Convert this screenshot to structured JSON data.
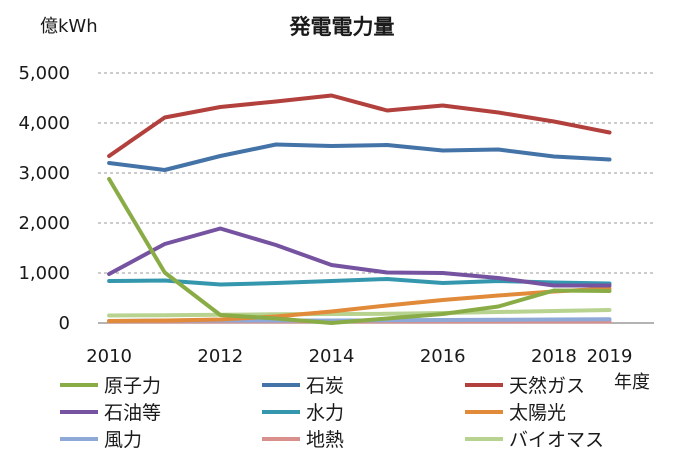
{
  "chart_data": {
    "type": "line",
    "title": "発電電力量",
    "ylabel": "億kWh",
    "xlabel": "年度",
    "x": [
      2010,
      2011,
      2012,
      2013,
      2014,
      2015,
      2016,
      2017,
      2018,
      2019
    ],
    "x_tick_labels": [
      "2010",
      "2012",
      "2014",
      "2016",
      "2018",
      "2019"
    ],
    "y_tick_labels": [
      "0",
      "1,000",
      "2,000",
      "3,000",
      "4,000",
      "5,000"
    ],
    "ylim": [
      0,
      5000
    ],
    "grid": true,
    "legend_placement": "bottom",
    "series": [
      {
        "name": "原子力",
        "color": "#8aac46",
        "values": [
          2880,
          1010,
          160,
          90,
          0,
          90,
          180,
          330,
          650,
          640
        ]
      },
      {
        "name": "石炭",
        "color": "#4473a8",
        "values": [
          3200,
          3060,
          3340,
          3570,
          3540,
          3560,
          3450,
          3470,
          3330,
          3270
        ]
      },
      {
        "name": "天然ガス",
        "color": "#b2403d",
        "values": [
          3340,
          4110,
          4320,
          4430,
          4550,
          4250,
          4350,
          4210,
          4030,
          3810
        ]
      },
      {
        "name": "石油等",
        "color": "#7653a0",
        "values": [
          980,
          1580,
          1890,
          1560,
          1160,
          1010,
          1000,
          900,
          750,
          750
        ]
      },
      {
        "name": "水力",
        "color": "#3597ad",
        "values": [
          840,
          850,
          770,
          800,
          840,
          880,
          800,
          840,
          810,
          790
        ]
      },
      {
        "name": "太陽光",
        "color": "#e08a3a",
        "values": [
          40,
          50,
          70,
          130,
          230,
          350,
          460,
          550,
          630,
          690
        ]
      },
      {
        "name": "風力",
        "color": "#8ea8d8",
        "values": [
          40,
          50,
          50,
          50,
          50,
          55,
          60,
          65,
          70,
          75
        ]
      },
      {
        "name": "地熱",
        "color": "#d98f8c",
        "values": [
          30,
          30,
          30,
          30,
          30,
          30,
          30,
          30,
          30,
          30
        ]
      },
      {
        "name": "バイオマス",
        "color": "#b7d38f",
        "values": [
          150,
          155,
          165,
          175,
          180,
          185,
          200,
          220,
          240,
          260
        ]
      }
    ]
  }
}
